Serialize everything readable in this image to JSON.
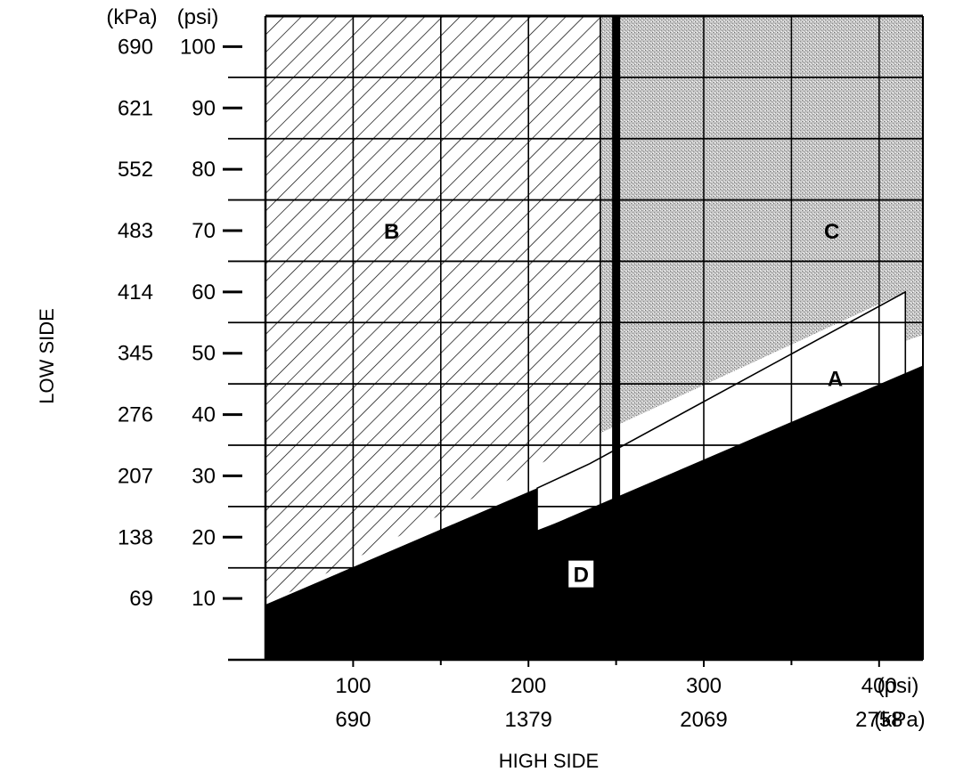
{
  "chart_data": {
    "type": "area",
    "xlabel": "HIGH SIDE",
    "ylabel": "LOW SIDE",
    "x_units": {
      "psi": "(psi)",
      "kpa": "(kPa)"
    },
    "y_units": {
      "kpa": "(kPa)",
      "psi": "(psi)"
    },
    "xlim": [
      50,
      425
    ],
    "ylim": [
      0,
      105
    ],
    "x_ticks": [
      {
        "psi": "100",
        "kpa": "690",
        "value": 100
      },
      {
        "psi": "200",
        "kpa": "1379",
        "value": 200
      },
      {
        "psi": "300",
        "kpa": "2069",
        "value": 300
      },
      {
        "psi": "400",
        "kpa": "2758",
        "value": 400
      }
    ],
    "x_minor_ticks": [
      150,
      250,
      350
    ],
    "y_ticks": [
      {
        "kpa": "690",
        "psi": "100",
        "value": 100
      },
      {
        "kpa": "621",
        "psi": "90",
        "value": 90
      },
      {
        "kpa": "552",
        "psi": "80",
        "value": 80
      },
      {
        "kpa": "483",
        "psi": "70",
        "value": 70
      },
      {
        "kpa": "414",
        "psi": "60",
        "value": 60
      },
      {
        "kpa": "345",
        "psi": "50",
        "value": 50
      },
      {
        "kpa": "276",
        "psi": "40",
        "value": 40
      },
      {
        "kpa": "207",
        "psi": "30",
        "value": 30
      },
      {
        "kpa": "138",
        "psi": "20",
        "value": 20
      },
      {
        "kpa": "69",
        "psi": "10",
        "value": 10
      }
    ],
    "grid": true,
    "regions": [
      {
        "label": "B",
        "fill": "hatched",
        "label_at": [
          122,
          70
        ],
        "polygon": [
          [
            50,
            105
          ],
          [
            241,
            105
          ],
          [
            241,
            37
          ],
          [
            50,
            9
          ]
        ]
      },
      {
        "label": "C",
        "fill": "stippled",
        "label_at": [
          373,
          70
        ],
        "polygon": [
          [
            241,
            105
          ],
          [
            425,
            105
          ],
          [
            425,
            53
          ],
          [
            415,
            52
          ],
          [
            415,
            60
          ],
          [
            241,
            37
          ]
        ]
      },
      {
        "label": "A",
        "fill": "white",
        "label_at": [
          375,
          46
        ],
        "polygon": [
          [
            205,
            28
          ],
          [
            235,
            32
          ],
          [
            415,
            60
          ],
          [
            415,
            44
          ],
          [
            205,
            21
          ]
        ]
      },
      {
        "label": "D",
        "fill": "black",
        "label_at": [
          230,
          14
        ],
        "polygon": [
          [
            50,
            9
          ],
          [
            205,
            28
          ],
          [
            205,
            21
          ],
          [
            425,
            48
          ],
          [
            425,
            0
          ],
          [
            50,
            0
          ]
        ]
      }
    ],
    "marker_line_x": 250,
    "colors": {
      "ink": "#000000",
      "stipple": "#b8b8b8",
      "paper": "#ffffff"
    }
  }
}
